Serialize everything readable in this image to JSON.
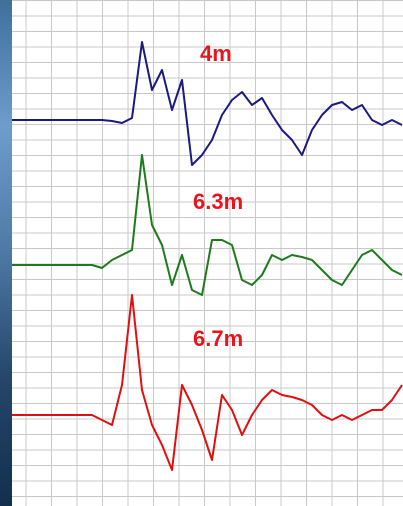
{
  "chart_data": [
    {
      "type": "line",
      "annotation": "4m",
      "color": "#1a1a80",
      "ylim": [
        -60,
        90
      ],
      "values": [
        0,
        0,
        0,
        0,
        0,
        0,
        0,
        0,
        0,
        0,
        -1,
        -3,
        2,
        78,
        30,
        50,
        10,
        40,
        -45,
        -35,
        -20,
        5,
        20,
        28,
        15,
        22,
        5,
        -10,
        -20,
        -35,
        -10,
        5,
        15,
        18,
        10,
        15,
        0,
        -5,
        0,
        -5
      ]
    },
    {
      "type": "line",
      "annotation": "6.3m",
      "color": "#1e7a1e",
      "ylim": [
        -60,
        120
      ],
      "values": [
        0,
        0,
        0,
        0,
        0,
        0,
        0,
        0,
        0,
        -3,
        5,
        10,
        15,
        110,
        40,
        20,
        -20,
        10,
        -25,
        -30,
        25,
        25,
        20,
        -15,
        -20,
        -10,
        10,
        5,
        10,
        8,
        5,
        -5,
        -15,
        -20,
        -5,
        10,
        15,
        5,
        -5,
        -10
      ]
    },
    {
      "type": "line",
      "annotation": "6.7m",
      "color": "#e01010",
      "ylim": [
        -60,
        130
      ],
      "values": [
        0,
        0,
        0,
        0,
        0,
        0,
        0,
        0,
        0,
        -5,
        -10,
        30,
        120,
        25,
        -10,
        -30,
        -55,
        30,
        10,
        -15,
        -45,
        20,
        5,
        -20,
        0,
        15,
        25,
        20,
        18,
        15,
        10,
        0,
        -5,
        0,
        -5,
        0,
        5,
        5,
        15,
        30
      ]
    }
  ]
}
